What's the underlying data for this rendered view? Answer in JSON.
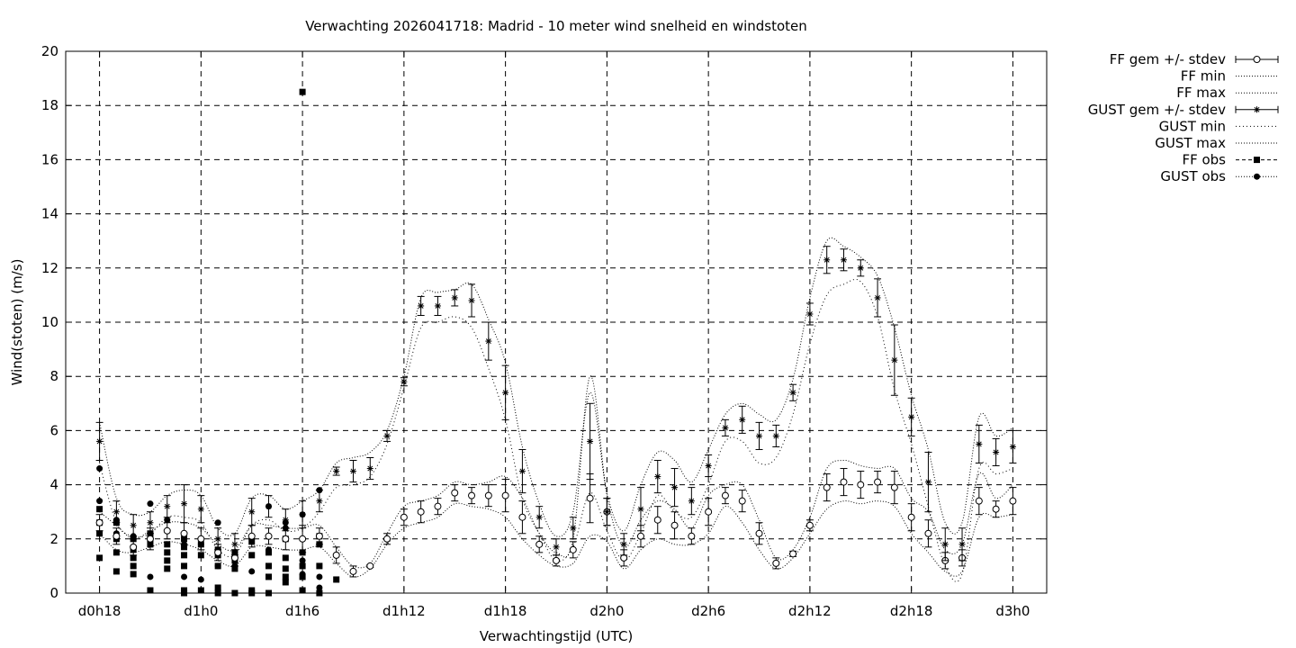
{
  "chart_data": {
    "type": "line",
    "title": "Verwachting 2026041718: Madrid - 10 meter wind snelheid en windstoten",
    "xlabel": "Verwachtingstijd (UTC)",
    "ylabel": "Wind(stoten) (m/s)",
    "ylim": [
      0,
      20
    ],
    "xlim": [
      -2,
      56
    ],
    "x_unit": "hours since d0h18",
    "y_ticks": [
      "0",
      "2",
      "4",
      "6",
      "8",
      "10",
      "12",
      "14",
      "16",
      "18",
      "20"
    ],
    "y_tick_values": [
      0,
      2,
      4,
      6,
      8,
      10,
      12,
      14,
      16,
      18,
      20
    ],
    "x_ticks": [
      "d0h18",
      "d1h0",
      "d1h6",
      "d1h12",
      "d1h18",
      "d2h0",
      "d2h6",
      "d2h12",
      "d2h18",
      "d3h0"
    ],
    "x_tick_values": [
      0,
      6,
      12,
      18,
      24,
      30,
      36,
      42,
      48,
      54
    ],
    "grid": true,
    "legend_position": "right, outside plot",
    "legend": [
      "FF gem +/- stdev",
      "FF min",
      "FF max",
      "GUST gem +/- stdev",
      "GUST min",
      "GUST max",
      "FF obs",
      "GUST obs"
    ],
    "forecast_hours": [
      0,
      1,
      2,
      3,
      4,
      5,
      6,
      7,
      8,
      9,
      10,
      11,
      12,
      13,
      14,
      15,
      16,
      17,
      18,
      19,
      20,
      21,
      22,
      23,
      24,
      25,
      26,
      27,
      28,
      29,
      30,
      31,
      32,
      33,
      34,
      35,
      36,
      37,
      38,
      39,
      40,
      41,
      42,
      43,
      44,
      45,
      46,
      47,
      48,
      49,
      50,
      51,
      52,
      53,
      54
    ],
    "series": [
      {
        "name": "FF gem +/- stdev",
        "values": [
          2.6,
          2.1,
          1.7,
          2.0,
          2.3,
          2.2,
          2.0,
          1.5,
          1.3,
          2.1,
          2.1,
          2.0,
          2.0,
          2.1,
          1.4,
          0.8,
          1.0,
          2.0,
          2.8,
          3.0,
          3.2,
          3.7,
          3.6,
          3.6,
          3.6,
          2.8,
          1.8,
          1.2,
          1.6,
          3.5,
          3.0,
          1.3,
          2.1,
          2.7,
          2.5,
          2.1,
          3.0,
          3.6,
          3.4,
          2.2,
          1.1,
          1.45,
          2.5,
          3.9,
          4.1,
          4.0,
          4.1,
          3.9,
          2.8,
          2.2,
          1.2,
          1.3,
          3.4,
          3.1,
          3.4
        ],
        "stdev": [
          0.3,
          0.3,
          0.3,
          0.4,
          0.3,
          0.4,
          0.4,
          0.3,
          0.3,
          0.4,
          0.3,
          0.4,
          0.5,
          0.3,
          0.3,
          0.2,
          0.05,
          0.2,
          0.3,
          0.4,
          0.3,
          0.3,
          0.3,
          0.4,
          0.6,
          0.6,
          0.3,
          0.2,
          0.3,
          0.9,
          0.5,
          0.3,
          0.4,
          0.5,
          0.5,
          0.3,
          0.5,
          0.3,
          0.4,
          0.4,
          0.2,
          0.1,
          0.2,
          0.5,
          0.5,
          0.5,
          0.4,
          0.6,
          0.5,
          0.5,
          0.3,
          0.3,
          0.5,
          0.3,
          0.5
        ]
      },
      {
        "name": "FF min",
        "values": [
          2.2,
          1.6,
          1.5,
          1.7,
          1.9,
          1.8,
          1.6,
          1.2,
          1.0,
          1.7,
          1.7,
          1.6,
          1.6,
          1.7,
          1.1,
          0.6,
          0.9,
          1.8,
          2.4,
          2.6,
          2.8,
          3.3,
          3.2,
          3.1,
          2.8,
          2.0,
          1.4,
          1.0,
          1.1,
          2.1,
          1.9,
          0.9,
          1.6,
          2.0,
          1.8,
          1.8,
          2.2,
          3.2,
          2.6,
          1.6,
          0.9,
          1.3,
          2.2,
          3.1,
          3.4,
          3.3,
          3.4,
          3.2,
          2.2,
          1.5,
          0.8,
          0.8,
          2.8,
          2.8,
          2.9
        ]
      },
      {
        "name": "FF max",
        "values": [
          3.0,
          2.5,
          2.0,
          2.3,
          2.6,
          2.6,
          2.4,
          1.8,
          1.6,
          2.5,
          2.5,
          2.4,
          2.4,
          2.5,
          1.7,
          1.0,
          1.1,
          2.2,
          3.2,
          3.4,
          3.6,
          4.1,
          4.0,
          4.1,
          4.3,
          3.5,
          2.2,
          1.5,
          2.0,
          8.0,
          3.6,
          1.7,
          2.7,
          3.4,
          3.1,
          2.4,
          3.6,
          4.0,
          4.0,
          2.7,
          1.3,
          1.6,
          2.8,
          4.6,
          4.9,
          4.7,
          4.6,
          4.6,
          3.5,
          3.0,
          1.6,
          1.8,
          4.4,
          3.5,
          4.0
        ]
      },
      {
        "name": "GUST gem +/- stdev",
        "values": [
          5.6,
          3.0,
          2.5,
          2.6,
          3.2,
          3.3,
          3.1,
          2.0,
          1.8,
          3.0,
          3.2,
          2.7,
          2.9,
          3.4,
          4.5,
          4.5,
          4.6,
          5.8,
          7.8,
          10.6,
          10.6,
          10.9,
          10.8,
          9.3,
          7.4,
          4.5,
          2.8,
          1.7,
          2.4,
          5.6,
          3.0,
          1.8,
          3.1,
          4.3,
          3.9,
          3.4,
          4.7,
          6.1,
          6.4,
          5.8,
          5.8,
          7.4,
          10.3,
          12.3,
          12.3,
          12.0,
          10.9,
          8.6,
          6.5,
          4.1,
          1.8,
          1.8,
          5.5,
          5.2,
          5.4
        ],
        "stdev": [
          0.7,
          0.4,
          0.4,
          0.4,
          0.4,
          0.7,
          0.5,
          0.4,
          0.4,
          0.5,
          0.4,
          0.4,
          0.5,
          0.4,
          0.15,
          0.4,
          0.4,
          0.2,
          0.15,
          0.35,
          0.35,
          0.3,
          0.6,
          0.7,
          1.0,
          0.8,
          0.4,
          0.3,
          0.4,
          1.4,
          0.5,
          0.4,
          0.8,
          0.6,
          0.7,
          0.5,
          0.4,
          0.3,
          0.5,
          0.5,
          0.4,
          0.3,
          0.4,
          0.5,
          0.4,
          0.3,
          0.7,
          1.3,
          0.7,
          1.1,
          0.6,
          0.6,
          0.7,
          0.5,
          0.6
        ]
      },
      {
        "name": "GUST min",
        "values": [
          4.8,
          2.6,
          2.1,
          2.2,
          2.8,
          2.8,
          2.6,
          1.6,
          1.4,
          2.5,
          2.7,
          2.3,
          2.4,
          3.0,
          3.9,
          4.0,
          4.3,
          5.5,
          7.6,
          9.8,
          10.0,
          10.2,
          9.8,
          8.3,
          6.4,
          3.5,
          2.2,
          1.2,
          1.7,
          3.7,
          2.3,
          1.2,
          2.2,
          3.6,
          3.0,
          2.8,
          4.0,
          5.6,
          5.6,
          4.8,
          5.0,
          6.6,
          9.2,
          11.0,
          11.4,
          11.5,
          10.2,
          7.5,
          5.5,
          3.2,
          1.0,
          0.7,
          4.6,
          4.4,
          4.6
        ]
      },
      {
        "name": "GUST max",
        "values": [
          6.3,
          3.5,
          2.9,
          3.0,
          3.6,
          3.8,
          3.6,
          2.4,
          2.2,
          3.5,
          3.6,
          3.1,
          3.4,
          3.8,
          4.8,
          5.0,
          5.2,
          6.0,
          8.0,
          10.9,
          11.1,
          11.2,
          11.4,
          10.1,
          8.5,
          5.4,
          3.3,
          2.1,
          3.0,
          7.4,
          3.7,
          2.3,
          4.0,
          5.2,
          4.9,
          4.1,
          5.3,
          6.6,
          7.0,
          6.6,
          6.4,
          7.9,
          10.9,
          13.0,
          12.8,
          12.4,
          11.7,
          9.8,
          7.3,
          5.3,
          2.6,
          2.6,
          6.5,
          5.8,
          6.1
        ]
      },
      {
        "name": "FF obs",
        "points": [
          [
            0,
            1.3
          ],
          [
            0,
            2.2
          ],
          [
            0,
            2.6
          ],
          [
            0,
            3.1
          ],
          [
            1,
            0.8
          ],
          [
            1,
            1.5
          ],
          [
            1,
            2.0
          ],
          [
            1,
            2.6
          ],
          [
            2,
            0.7
          ],
          [
            2,
            1.0
          ],
          [
            2,
            1.3
          ],
          [
            2,
            1.6
          ],
          [
            2,
            2.0
          ],
          [
            3,
            0.1
          ],
          [
            3,
            1.8
          ],
          [
            3,
            2.0
          ],
          [
            3,
            2.2
          ],
          [
            4,
            0.9
          ],
          [
            4,
            1.2
          ],
          [
            4,
            1.5
          ],
          [
            4,
            1.8
          ],
          [
            5,
            0.0
          ],
          [
            5,
            0.1
          ],
          [
            5,
            1.0
          ],
          [
            5,
            1.4
          ],
          [
            5,
            1.7
          ],
          [
            5,
            2.0
          ],
          [
            6,
            0.1
          ],
          [
            6,
            1.4
          ],
          [
            6,
            1.8
          ],
          [
            7,
            0.0
          ],
          [
            7,
            0.2
          ],
          [
            7,
            1.0
          ],
          [
            7,
            1.4
          ],
          [
            7,
            1.6
          ],
          [
            8,
            0.0
          ],
          [
            8,
            0.9
          ],
          [
            8,
            1.2
          ],
          [
            8,
            1.5
          ],
          [
            9,
            0.0
          ],
          [
            9,
            0.1
          ],
          [
            9,
            1.4
          ],
          [
            9,
            1.9
          ],
          [
            10,
            0.0
          ],
          [
            10,
            0.6
          ],
          [
            10,
            1.0
          ],
          [
            10,
            1.5
          ],
          [
            11,
            0.4
          ],
          [
            11,
            0.6
          ],
          [
            11,
            0.9
          ],
          [
            11,
            1.3
          ],
          [
            11,
            2.0
          ],
          [
            12,
            0.1
          ],
          [
            12,
            0.6
          ],
          [
            12,
            1.0
          ],
          [
            12,
            1.5
          ],
          [
            12,
            18.5
          ],
          [
            13,
            0.0
          ],
          [
            13,
            1.0
          ],
          [
            13,
            1.8
          ],
          [
            13,
            2.1
          ],
          [
            14,
            0.5
          ]
        ]
      },
      {
        "name": "GUST obs",
        "points": [
          [
            0,
            3.4
          ],
          [
            0,
            4.6
          ],
          [
            1,
            2.2
          ],
          [
            1,
            2.7
          ],
          [
            2,
            2.1
          ],
          [
            3,
            0.6
          ],
          [
            3,
            3.3
          ],
          [
            4,
            2.7
          ],
          [
            5,
            0.6
          ],
          [
            5,
            1.8
          ],
          [
            6,
            0.5
          ],
          [
            6,
            1.8
          ],
          [
            6,
            2.0
          ],
          [
            7,
            1.0
          ],
          [
            7,
            2.6
          ],
          [
            8,
            1.0
          ],
          [
            8,
            1.5
          ],
          [
            9,
            0.8
          ],
          [
            9,
            2.0
          ],
          [
            10,
            1.6
          ],
          [
            10,
            3.2
          ],
          [
            11,
            2.4
          ],
          [
            11,
            2.6
          ],
          [
            12,
            0.1
          ],
          [
            12,
            0.7
          ],
          [
            12,
            1.2
          ],
          [
            12,
            2.0
          ],
          [
            12,
            2.9
          ],
          [
            13,
            0.2
          ],
          [
            13,
            0.6
          ],
          [
            13,
            3.8
          ]
        ]
      }
    ]
  }
}
